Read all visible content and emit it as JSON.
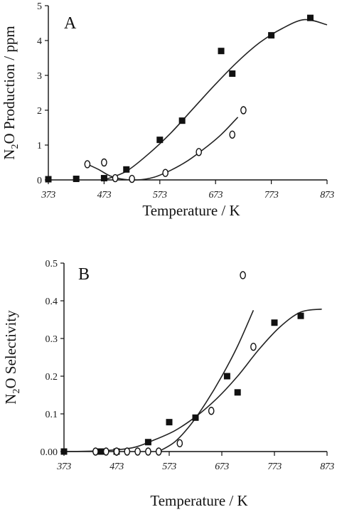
{
  "chart_data": [
    {
      "type": "scatter",
      "panel_label": "A",
      "title": "",
      "xlabel": "Temperature / K",
      "ylabel": "N2O Production / ppm",
      "xlim": [
        373,
        873
      ],
      "ylim": [
        0,
        5
      ],
      "x_ticks": [
        373,
        473,
        573,
        673,
        773,
        873
      ],
      "x_tick_labels": [
        "373",
        "473",
        "573",
        "673",
        "773",
        "873"
      ],
      "y_ticks": [
        0,
        1,
        2,
        3,
        4,
        5
      ],
      "y_tick_labels": [
        "0",
        "1",
        "2",
        "3",
        "4",
        "5"
      ],
      "grid": false,
      "series": [
        {
          "marker": "filled-square",
          "points": [
            {
              "x": 373,
              "y": 0.02
            },
            {
              "x": 423,
              "y": 0.03
            },
            {
              "x": 473,
              "y": 0.05
            },
            {
              "x": 513,
              "y": 0.3
            },
            {
              "x": 573,
              "y": 1.15
            },
            {
              "x": 613,
              "y": 1.7
            },
            {
              "x": 683,
              "y": 3.7
            },
            {
              "x": 703,
              "y": 3.05
            },
            {
              "x": 773,
              "y": 4.15
            },
            {
              "x": 843,
              "y": 4.65
            }
          ],
          "fit": [
            {
              "x": 473,
              "y": 0.0
            },
            {
              "x": 513,
              "y": 0.25
            },
            {
              "x": 553,
              "y": 0.75
            },
            {
              "x": 593,
              "y": 1.35
            },
            {
              "x": 633,
              "y": 2.05
            },
            {
              "x": 673,
              "y": 2.75
            },
            {
              "x": 713,
              "y": 3.4
            },
            {
              "x": 753,
              "y": 3.95
            },
            {
              "x": 793,
              "y": 4.35
            },
            {
              "x": 833,
              "y": 4.6
            },
            {
              "x": 873,
              "y": 4.45
            }
          ]
        },
        {
          "marker": "open-diamond",
          "points": [
            {
              "x": 443,
              "y": 0.45
            },
            {
              "x": 473,
              "y": 0.5
            },
            {
              "x": 493,
              "y": 0.05
            },
            {
              "x": 523,
              "y": 0.03
            },
            {
              "x": 583,
              "y": 0.2
            },
            {
              "x": 643,
              "y": 0.8
            },
            {
              "x": 703,
              "y": 1.3
            },
            {
              "x": 723,
              "y": 2.0
            }
          ],
          "fit": [
            {
              "x": 443,
              "y": 0.45
            },
            {
              "x": 463,
              "y": 0.3
            },
            {
              "x": 483,
              "y": 0.12
            },
            {
              "x": 503,
              "y": 0.03
            },
            {
              "x": 533,
              "y": 0.0
            },
            {
              "x": 563,
              "y": 0.08
            },
            {
              "x": 593,
              "y": 0.28
            },
            {
              "x": 623,
              "y": 0.55
            },
            {
              "x": 653,
              "y": 0.9
            },
            {
              "x": 683,
              "y": 1.3
            },
            {
              "x": 713,
              "y": 1.8
            }
          ]
        }
      ]
    },
    {
      "type": "scatter",
      "panel_label": "B",
      "title": "",
      "xlabel": "Temperature / K",
      "ylabel": "N2O Selectivity",
      "xlim": [
        373,
        873
      ],
      "ylim": [
        0,
        0.5
      ],
      "x_ticks": [
        373,
        473,
        573,
        673,
        773,
        873
      ],
      "x_tick_labels": [
        "373",
        "473",
        "573",
        "673",
        "773",
        "873"
      ],
      "y_ticks": [
        0,
        0.1,
        0.2,
        0.3,
        0.4,
        0.5
      ],
      "y_tick_labels": [
        "0.00",
        "0.1",
        "0.2",
        "0.3",
        "0.4",
        "0.5"
      ],
      "grid": false,
      "series": [
        {
          "marker": "filled-square",
          "points": [
            {
              "x": 373,
              "y": 0.0
            },
            {
              "x": 443,
              "y": 0.0
            },
            {
              "x": 473,
              "y": 0.0
            },
            {
              "x": 533,
              "y": 0.025
            },
            {
              "x": 573,
              "y": 0.078
            },
            {
              "x": 623,
              "y": 0.09
            },
            {
              "x": 683,
              "y": 0.2
            },
            {
              "x": 703,
              "y": 0.157
            },
            {
              "x": 773,
              "y": 0.342
            },
            {
              "x": 823,
              "y": 0.36
            }
          ],
          "fit": [
            {
              "x": 373,
              "y": 0.0
            },
            {
              "x": 443,
              "y": 0.002
            },
            {
              "x": 503,
              "y": 0.01
            },
            {
              "x": 543,
              "y": 0.03
            },
            {
              "x": 583,
              "y": 0.055
            },
            {
              "x": 623,
              "y": 0.092
            },
            {
              "x": 663,
              "y": 0.14
            },
            {
              "x": 703,
              "y": 0.2
            },
            {
              "x": 743,
              "y": 0.27
            },
            {
              "x": 783,
              "y": 0.33
            },
            {
              "x": 823,
              "y": 0.37
            },
            {
              "x": 863,
              "y": 0.378
            }
          ]
        },
        {
          "marker": "open-diamond",
          "points": [
            {
              "x": 433,
              "y": 0.0
            },
            {
              "x": 453,
              "y": 0.0
            },
            {
              "x": 473,
              "y": 0.0
            },
            {
              "x": 493,
              "y": 0.0
            },
            {
              "x": 513,
              "y": 0.0
            },
            {
              "x": 533,
              "y": 0.0
            },
            {
              "x": 553,
              "y": 0.0
            },
            {
              "x": 593,
              "y": 0.022
            },
            {
              "x": 653,
              "y": 0.108
            },
            {
              "x": 713,
              "y": 0.468
            },
            {
              "x": 733,
              "y": 0.278
            }
          ],
          "fit": [
            {
              "x": 553,
              "y": 0.0
            },
            {
              "x": 583,
              "y": 0.025
            },
            {
              "x": 613,
              "y": 0.07
            },
            {
              "x": 643,
              "y": 0.13
            },
            {
              "x": 673,
              "y": 0.2
            },
            {
              "x": 703,
              "y": 0.28
            },
            {
              "x": 733,
              "y": 0.375
            }
          ]
        }
      ]
    }
  ]
}
